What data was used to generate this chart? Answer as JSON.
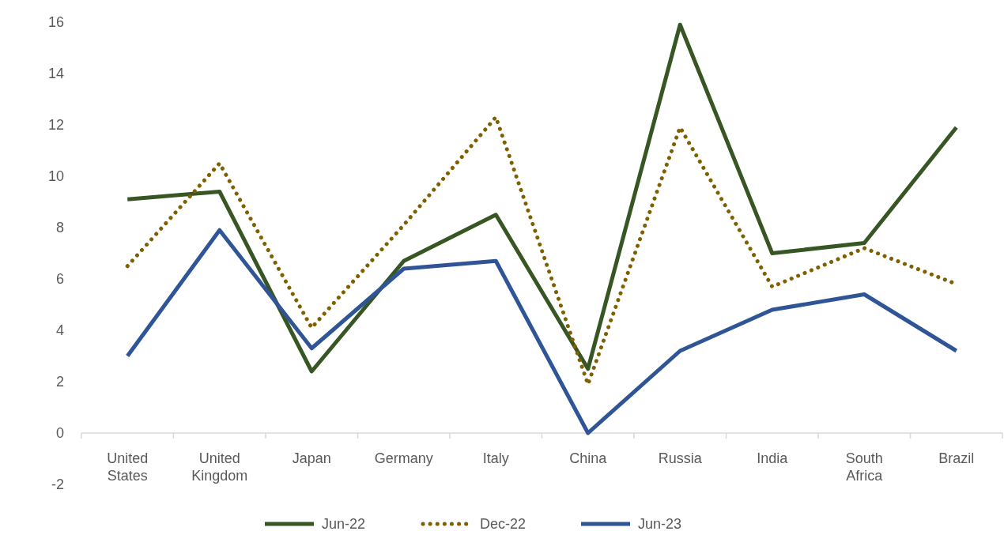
{
  "chart_data": {
    "type": "line",
    "categories": [
      "United States",
      "United Kingdom",
      "Japan",
      "Germany",
      "Italy",
      "China",
      "Russia",
      "India",
      "South Africa",
      "Brazil"
    ],
    "series": [
      {
        "name": "Jun-22",
        "color": "#375623",
        "line_style": "solid",
        "values": [
          9.1,
          9.4,
          2.4,
          6.7,
          8.5,
          2.5,
          15.9,
          7.0,
          7.4,
          11.9
        ]
      },
      {
        "name": "Dec-22",
        "color": "#7f6000",
        "line_style": "dotted",
        "values": [
          6.5,
          10.5,
          4.1,
          8.1,
          12.3,
          1.9,
          11.9,
          5.7,
          7.2,
          5.8
        ]
      },
      {
        "name": "Jun-23",
        "color": "#2f5597",
        "line_style": "solid",
        "values": [
          3.0,
          7.9,
          3.3,
          6.4,
          6.7,
          0.0,
          3.2,
          4.8,
          5.4,
          3.2
        ]
      }
    ],
    "ylim": [
      -2,
      16
    ],
    "yticks": [
      -2,
      0,
      2,
      4,
      6,
      8,
      10,
      12,
      14,
      16
    ],
    "grid": false,
    "legend": "bottom"
  }
}
